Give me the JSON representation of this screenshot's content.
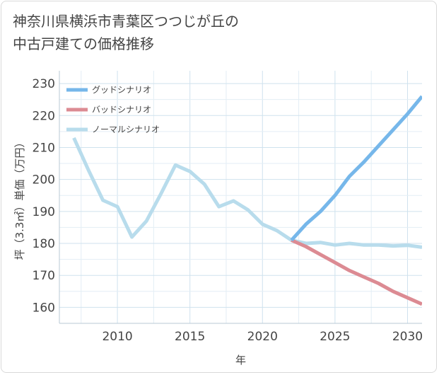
{
  "chart_data": {
    "type": "line",
    "title": [
      "神奈川県横浜市青葉区つつじが丘の",
      "中古戸建ての価格推移"
    ],
    "xlabel": "年",
    "ylabel": "坪（3.3㎡）単価（万円）",
    "xlim": [
      2006,
      2031
    ],
    "ylim": [
      155,
      234
    ],
    "x_ticks": [
      2010,
      2015,
      2020,
      2025,
      2030
    ],
    "y_ticks": [
      160,
      170,
      180,
      190,
      200,
      210,
      220,
      230
    ],
    "grid": true,
    "legend_position": "top-left",
    "series": [
      {
        "name": "グッドシナリオ",
        "color": "#76b7ea",
        "x": [
          2022,
          2023,
          2024,
          2025,
          2026,
          2027,
          2028,
          2029,
          2030,
          2031
        ],
        "y": [
          181,
          186,
          190,
          195,
          201,
          205.5,
          210.5,
          215.5,
          220.5,
          226
        ]
      },
      {
        "name": "バッドシナリオ",
        "color": "#dc8b93",
        "x": [
          2022,
          2023,
          2024,
          2025,
          2026,
          2027,
          2028,
          2029,
          2030,
          2031
        ],
        "y": [
          181,
          179,
          176.5,
          174,
          171.5,
          169.5,
          167.5,
          165,
          163,
          161
        ]
      },
      {
        "name": "ノーマルシナリオ",
        "color": "#b8dcec",
        "x": [
          2007,
          2008,
          2009,
          2010,
          2011,
          2012,
          2013,
          2014,
          2015,
          2016,
          2017,
          2018,
          2019,
          2020,
          2021,
          2022,
          2023,
          2024,
          2025,
          2026,
          2027,
          2028,
          2029,
          2030,
          2031
        ],
        "y": [
          213,
          203,
          193.5,
          191.5,
          182,
          187,
          195.5,
          204.5,
          202.5,
          198.5,
          191.5,
          193.3,
          190.5,
          186,
          184,
          181,
          180,
          180.3,
          179.5,
          180,
          179.5,
          179.5,
          179.2,
          179.4,
          178.8
        ]
      }
    ]
  }
}
